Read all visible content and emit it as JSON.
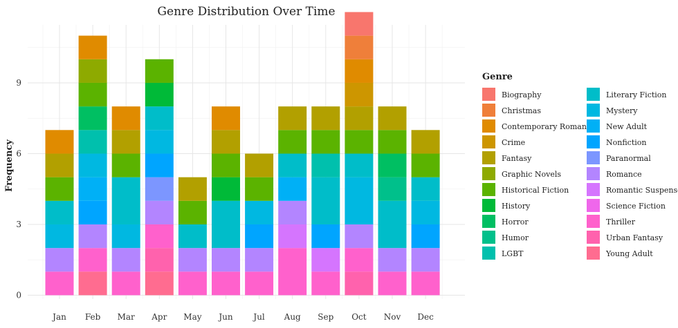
{
  "chart_data": {
    "type": "bar",
    "stacked": true,
    "title": "Genre Distribution Over Time",
    "xlabel": "",
    "ylabel": "Frequency",
    "legend_title": "Genre",
    "legend_placement": "right",
    "ylim": [
      0,
      11
    ],
    "yticks": [
      0,
      3,
      6,
      9
    ],
    "grid": true,
    "categories": [
      "Jan",
      "Feb",
      "Mar",
      "Apr",
      "May",
      "Jun",
      "Jul",
      "Aug",
      "Sep",
      "Oct",
      "Nov",
      "Dec"
    ],
    "series": [
      {
        "name": "Biography",
        "color": "#F8766D",
        "values": [
          0,
          0,
          0,
          0,
          0,
          0,
          0,
          0,
          0,
          1,
          0,
          0
        ]
      },
      {
        "name": "Christmas",
        "color": "#EF7F3A",
        "values": [
          0,
          0,
          0,
          0,
          0,
          0,
          0,
          0,
          0,
          1,
          0,
          0
        ]
      },
      {
        "name": "Contemporary Romance",
        "color": "#E08B00",
        "values": [
          1,
          1,
          1,
          0,
          0,
          1,
          0,
          0,
          0,
          1,
          0,
          0
        ]
      },
      {
        "name": "Crime",
        "color": "#CD9600",
        "values": [
          0,
          0,
          0,
          0,
          0,
          0,
          0,
          0,
          0,
          1,
          0,
          0
        ]
      },
      {
        "name": "Fantasy",
        "color": "#B2A000",
        "values": [
          1,
          0,
          1,
          0,
          1,
          1,
          1,
          1,
          1,
          1,
          1,
          1
        ]
      },
      {
        "name": "Graphic Novels",
        "color": "#8EAA00",
        "values": [
          0,
          1,
          0,
          0,
          0,
          0,
          0,
          0,
          0,
          0,
          0,
          0
        ]
      },
      {
        "name": "Historical Fiction",
        "color": "#5BB300",
        "values": [
          1,
          1,
          1,
          1,
          1,
          1,
          1,
          1,
          1,
          1,
          1,
          1
        ]
      },
      {
        "name": "History",
        "color": "#00BA38",
        "values": [
          0,
          0,
          0,
          1,
          0,
          1,
          0,
          0,
          0,
          0,
          0,
          0
        ]
      },
      {
        "name": "Horror",
        "color": "#00BF62",
        "values": [
          0,
          1,
          0,
          0,
          0,
          0,
          0,
          0,
          0,
          0,
          1,
          0
        ]
      },
      {
        "name": "Humor",
        "color": "#00C08B",
        "values": [
          0,
          0,
          0,
          0,
          0,
          0,
          0,
          0,
          0,
          0,
          1,
          0
        ]
      },
      {
        "name": "LGBT",
        "color": "#00C0AD",
        "values": [
          0,
          1,
          0,
          0,
          0,
          0,
          0,
          0,
          1,
          0,
          0,
          0
        ]
      },
      {
        "name": "Literary Fiction",
        "color": "#00BDC9",
        "values": [
          1,
          0,
          2,
          1,
          1,
          2,
          0,
          1,
          2,
          1,
          2,
          1
        ]
      },
      {
        "name": "Mystery",
        "color": "#00B8E1",
        "values": [
          1,
          1,
          1,
          1,
          0,
          0,
          1,
          0,
          0,
          2,
          0,
          1
        ]
      },
      {
        "name": "New Adult",
        "color": "#00B0F6",
        "values": [
          0,
          1,
          0,
          0,
          0,
          0,
          0,
          1,
          0,
          0,
          0,
          0
        ]
      },
      {
        "name": "Nonfiction",
        "color": "#00A5FF",
        "values": [
          0,
          1,
          0,
          1,
          0,
          0,
          1,
          0,
          1,
          0,
          0,
          1
        ]
      },
      {
        "name": "Paranormal",
        "color": "#7C96FF",
        "values": [
          0,
          0,
          0,
          1,
          0,
          0,
          0,
          0,
          0,
          0,
          0,
          0
        ]
      },
      {
        "name": "Romance",
        "color": "#B385FF",
        "values": [
          1,
          1,
          1,
          1,
          1,
          1,
          1,
          1,
          0,
          1,
          1,
          1
        ]
      },
      {
        "name": "Romantic Suspense",
        "color": "#D575FE",
        "values": [
          0,
          0,
          0,
          0,
          0,
          0,
          0,
          1,
          1,
          0,
          0,
          0
        ]
      },
      {
        "name": "Science Fiction",
        "color": "#EF67EB",
        "values": [
          0,
          0,
          0,
          0,
          0,
          0,
          0,
          0,
          0,
          0,
          0,
          0
        ]
      },
      {
        "name": "Thriller",
        "color": "#FF61CC",
        "values": [
          1,
          1,
          1,
          1,
          1,
          1,
          1,
          2,
          1,
          1,
          1,
          1
        ]
      },
      {
        "name": "Urban Fantasy",
        "color": "#FF62AD",
        "values": [
          0,
          0,
          0,
          1,
          0,
          0,
          0,
          0,
          0,
          1,
          0,
          0
        ]
      },
      {
        "name": "Young Adult",
        "color": "#FF6C90",
        "values": [
          0,
          1,
          0,
          1,
          0,
          0,
          0,
          0,
          0,
          0,
          0,
          0
        ]
      }
    ]
  }
}
